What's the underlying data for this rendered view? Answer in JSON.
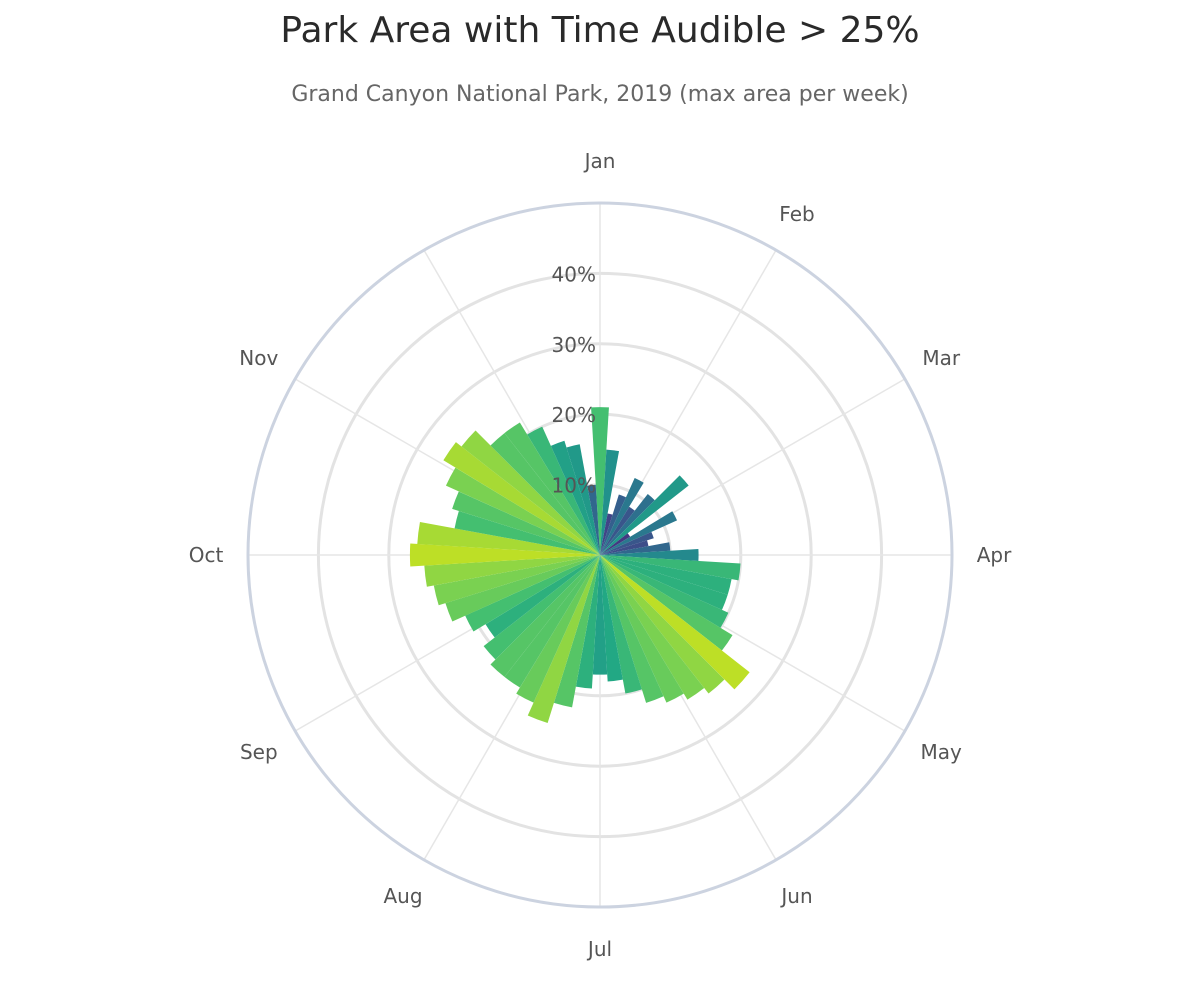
{
  "chart_data": {
    "type": "bar",
    "subtype": "polar",
    "title": "Park Area with Time Audible > 25%",
    "subtitle": "Grand Canyon National Park, 2019 (max area per week)",
    "angular_axis": {
      "direction": "clockwise",
      "rotation": "Jan at top",
      "labels": [
        "Jan",
        "Feb",
        "Mar",
        "Apr",
        "May",
        "Jun",
        "Jul",
        "Aug",
        "Sep",
        "Oct",
        "Nov"
      ]
    },
    "radial_axis": {
      "range": [
        0,
        50
      ],
      "tickvals": [
        10,
        20,
        30,
        40
      ],
      "ticklabels": [
        "10%",
        "20%",
        "30%",
        "40%"
      ],
      "gridlines": true
    },
    "colorscale": "viridis",
    "color_range": [
      0,
      30
    ],
    "weeks": [
      1,
      2,
      3,
      4,
      5,
      6,
      7,
      8,
      9,
      10,
      11,
      12,
      13,
      14,
      15,
      16,
      17,
      18,
      19,
      20,
      21,
      22,
      23,
      24,
      25,
      26,
      27,
      28,
      29,
      30,
      31,
      32,
      33,
      34,
      35,
      36,
      37,
      38,
      39,
      40,
      41,
      42,
      43,
      44,
      45,
      46,
      47,
      48,
      49,
      50,
      51,
      52
    ],
    "values": [
      21,
      15,
      6,
      9,
      12,
      8,
      11,
      16,
      5,
      12,
      8,
      7,
      10,
      14,
      20,
      19,
      19,
      20,
      22,
      27,
      25,
      24,
      23,
      22,
      20,
      18,
      17,
      19,
      22,
      25,
      23,
      22,
      22,
      21,
      19,
      21,
      23,
      24,
      25,
      27,
      26,
      21,
      22,
      24,
      26,
      25,
      22,
      22,
      20,
      17,
      16,
      10
    ]
  },
  "colors": {
    "title": "#2a2a2a",
    "subtitle": "#666666",
    "label": "#555555",
    "grid": "#e3e3e3",
    "outer_ring": "#ccd3e0",
    "spoke": "#e6e6e6"
  }
}
